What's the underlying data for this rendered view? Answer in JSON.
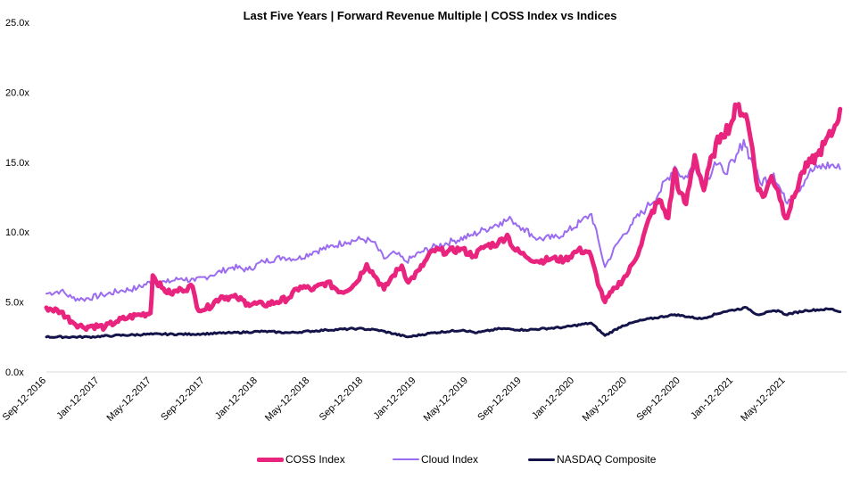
{
  "chart_data": {
    "type": "line",
    "title": "Last Five Years | Forward Revenue Multiple | COSS Index vs Indices",
    "xlabel": "",
    "ylabel": "",
    "x_ticks": [
      "Sep-12-2016",
      "Jan-12-2017",
      "May-12-2017",
      "Sep-12-2017",
      "Jan-12-2018",
      "May-12-2018",
      "Sep-12-2018",
      "Jan-12-2019",
      "May-12-2019",
      "Sep-12-2019",
      "Jan-12-2020",
      "May-12-2020",
      "Sep-12-2020",
      "Jan-12-2021",
      "May-12-2021"
    ],
    "y_ticks": [
      "0.0x",
      "5.0x",
      "10.0x",
      "15.0x",
      "20.0x",
      "25.0x"
    ],
    "ylim": [
      0,
      25
    ],
    "xlim": [
      "2016-09-12",
      "2021-09-30"
    ],
    "grid": false,
    "legend_position": "bottom",
    "series": [
      {
        "name": "COSS Index",
        "color": "#E8247E",
        "points": [
          [
            "2016-09-12",
            4.6
          ],
          [
            "2016-10-15",
            4.3
          ],
          [
            "2016-11-10",
            3.6
          ],
          [
            "2016-12-05",
            3.2
          ],
          [
            "2016-12-28",
            3.3
          ],
          [
            "2017-01-25",
            3.2
          ],
          [
            "2017-02-20",
            3.6
          ],
          [
            "2017-03-20",
            3.9
          ],
          [
            "2017-04-15",
            4.1
          ],
          [
            "2017-05-10",
            4.2
          ],
          [
            "2017-05-15",
            6.9
          ],
          [
            "2017-06-05",
            6.0
          ],
          [
            "2017-06-25",
            5.6
          ],
          [
            "2017-07-20",
            5.9
          ],
          [
            "2017-08-15",
            6.1
          ],
          [
            "2017-08-25",
            4.6
          ],
          [
            "2017-09-15",
            4.5
          ],
          [
            "2017-10-20",
            5.4
          ],
          [
            "2017-11-25",
            5.3
          ],
          [
            "2017-12-20",
            4.9
          ],
          [
            "2018-01-25",
            4.8
          ],
          [
            "2018-02-25",
            5.0
          ],
          [
            "2018-03-25",
            5.3
          ],
          [
            "2018-04-20",
            6.1
          ],
          [
            "2018-05-20",
            5.9
          ],
          [
            "2018-06-20",
            6.4
          ],
          [
            "2018-07-25",
            5.7
          ],
          [
            "2018-08-25",
            6.3
          ],
          [
            "2018-09-20",
            7.7
          ],
          [
            "2018-10-15",
            6.6
          ],
          [
            "2018-10-30",
            5.9
          ],
          [
            "2018-11-20",
            6.9
          ],
          [
            "2018-12-10",
            7.6
          ],
          [
            "2018-12-25",
            6.4
          ],
          [
            "2019-01-20",
            7.3
          ],
          [
            "2019-02-20",
            8.7
          ],
          [
            "2019-03-25",
            8.6
          ],
          [
            "2019-04-25",
            8.8
          ],
          [
            "2019-05-25",
            8.3
          ],
          [
            "2019-06-20",
            9.0
          ],
          [
            "2019-07-20",
            9.2
          ],
          [
            "2019-08-10",
            9.8
          ],
          [
            "2019-08-25",
            8.8
          ],
          [
            "2019-09-20",
            8.3
          ],
          [
            "2019-10-20",
            7.9
          ],
          [
            "2019-11-20",
            8.1
          ],
          [
            "2019-12-20",
            8.0
          ],
          [
            "2020-01-20",
            8.7
          ],
          [
            "2020-02-15",
            8.6
          ],
          [
            "2020-03-10",
            6.0
          ],
          [
            "2020-03-22",
            5.0
          ],
          [
            "2020-04-15",
            6.0
          ],
          [
            "2020-05-15",
            7.1
          ],
          [
            "2020-06-10",
            8.8
          ],
          [
            "2020-07-05",
            11.2
          ],
          [
            "2020-07-25",
            12.3
          ],
          [
            "2020-08-15",
            11.0
          ],
          [
            "2020-08-30",
            14.5
          ],
          [
            "2020-09-10",
            12.8
          ],
          [
            "2020-09-25",
            12.0
          ],
          [
            "2020-10-15",
            15.5
          ],
          [
            "2020-11-05",
            13.0
          ],
          [
            "2020-11-25",
            15.5
          ],
          [
            "2020-12-15",
            17.0
          ],
          [
            "2021-01-05",
            17.6
          ],
          [
            "2021-01-20",
            19.0
          ],
          [
            "2021-02-10",
            18.4
          ],
          [
            "2021-02-25",
            16.0
          ],
          [
            "2021-03-10",
            13.0
          ],
          [
            "2021-03-25",
            12.6
          ],
          [
            "2021-04-10",
            14.0
          ],
          [
            "2021-04-25",
            13.0
          ],
          [
            "2021-05-12",
            11.0
          ],
          [
            "2021-06-01",
            12.5
          ],
          [
            "2021-06-20",
            14.3
          ],
          [
            "2021-07-10",
            15.0
          ],
          [
            "2021-07-25",
            15.5
          ],
          [
            "2021-08-10",
            16.3
          ],
          [
            "2021-08-30",
            17.2
          ],
          [
            "2021-09-15",
            18.8
          ]
        ]
      },
      {
        "name": "Cloud Index",
        "color": "#9B6BF0",
        "points": [
          [
            "2016-09-12",
            5.6
          ],
          [
            "2016-10-15",
            5.8
          ],
          [
            "2016-11-10",
            5.3
          ],
          [
            "2016-12-05",
            5.2
          ],
          [
            "2017-01-20",
            5.5
          ],
          [
            "2017-03-01",
            5.8
          ],
          [
            "2017-04-10",
            6.0
          ],
          [
            "2017-05-15",
            6.5
          ],
          [
            "2017-06-15",
            6.4
          ],
          [
            "2017-07-20",
            6.7
          ],
          [
            "2017-08-20",
            6.5
          ],
          [
            "2017-09-25",
            6.9
          ],
          [
            "2017-11-15",
            7.5
          ],
          [
            "2017-12-20",
            7.3
          ],
          [
            "2018-01-25",
            7.9
          ],
          [
            "2018-03-10",
            8.2
          ],
          [
            "2018-04-15",
            8.1
          ],
          [
            "2018-05-20",
            8.6
          ],
          [
            "2018-06-25",
            8.9
          ],
          [
            "2018-08-01",
            9.3
          ],
          [
            "2018-09-10",
            9.5
          ],
          [
            "2018-10-05",
            9.3
          ],
          [
            "2018-10-30",
            8.1
          ],
          [
            "2018-11-25",
            8.5
          ],
          [
            "2018-12-20",
            7.9
          ],
          [
            "2019-01-25",
            8.6
          ],
          [
            "2019-03-01",
            9.0
          ],
          [
            "2019-04-10",
            9.4
          ],
          [
            "2019-05-15",
            9.7
          ],
          [
            "2019-06-20",
            10.2
          ],
          [
            "2019-07-25",
            10.7
          ],
          [
            "2019-08-20",
            10.9
          ],
          [
            "2019-09-15",
            10.3
          ],
          [
            "2019-10-20",
            9.5
          ],
          [
            "2019-11-25",
            9.6
          ],
          [
            "2019-12-25",
            10.0
          ],
          [
            "2020-01-25",
            10.7
          ],
          [
            "2020-02-20",
            11.3
          ],
          [
            "2020-03-10",
            9.0
          ],
          [
            "2020-03-22",
            7.5
          ],
          [
            "2020-04-20",
            9.2
          ],
          [
            "2020-05-20",
            10.5
          ],
          [
            "2020-06-25",
            11.7
          ],
          [
            "2020-07-25",
            12.8
          ],
          [
            "2020-08-30",
            14.7
          ],
          [
            "2020-09-20",
            13.8
          ],
          [
            "2020-10-15",
            14.8
          ],
          [
            "2020-11-10",
            13.5
          ],
          [
            "2020-11-30",
            15.0
          ],
          [
            "2020-12-20",
            14.3
          ],
          [
            "2021-01-15",
            15.0
          ],
          [
            "2021-02-05",
            16.6
          ],
          [
            "2021-02-20",
            15.3
          ],
          [
            "2021-03-15",
            13.5
          ],
          [
            "2021-04-15",
            14.2
          ],
          [
            "2021-05-12",
            12.2
          ],
          [
            "2021-06-10",
            13.0
          ],
          [
            "2021-07-05",
            14.2
          ],
          [
            "2021-07-25",
            14.6
          ],
          [
            "2021-08-25",
            14.8
          ],
          [
            "2021-09-15",
            14.5
          ]
        ]
      },
      {
        "name": "NASDAQ Composite",
        "color": "#14144A",
        "points": [
          [
            "2016-09-12",
            2.5
          ],
          [
            "2016-12-20",
            2.5
          ],
          [
            "2017-02-15",
            2.6
          ],
          [
            "2017-05-15",
            2.7
          ],
          [
            "2017-08-15",
            2.7
          ],
          [
            "2017-11-15",
            2.8
          ],
          [
            "2018-01-25",
            2.9
          ],
          [
            "2018-03-25",
            2.8
          ],
          [
            "2018-06-20",
            3.0
          ],
          [
            "2018-08-30",
            3.1
          ],
          [
            "2018-10-15",
            3.0
          ],
          [
            "2018-12-24",
            2.5
          ],
          [
            "2019-02-20",
            2.8
          ],
          [
            "2019-04-30",
            3.0
          ],
          [
            "2019-06-01",
            2.8
          ],
          [
            "2019-07-25",
            3.1
          ],
          [
            "2019-09-20",
            3.0
          ],
          [
            "2019-12-20",
            3.2
          ],
          [
            "2020-02-19",
            3.5
          ],
          [
            "2020-03-22",
            2.6
          ],
          [
            "2020-05-01",
            3.3
          ],
          [
            "2020-06-15",
            3.7
          ],
          [
            "2020-08-30",
            4.1
          ],
          [
            "2020-10-30",
            3.8
          ],
          [
            "2020-12-20",
            4.3
          ],
          [
            "2021-02-12",
            4.6
          ],
          [
            "2021-03-08",
            4.1
          ],
          [
            "2021-04-25",
            4.4
          ],
          [
            "2021-05-12",
            4.1
          ],
          [
            "2021-06-30",
            4.4
          ],
          [
            "2021-08-25",
            4.5
          ],
          [
            "2021-09-15",
            4.3
          ]
        ]
      }
    ]
  }
}
